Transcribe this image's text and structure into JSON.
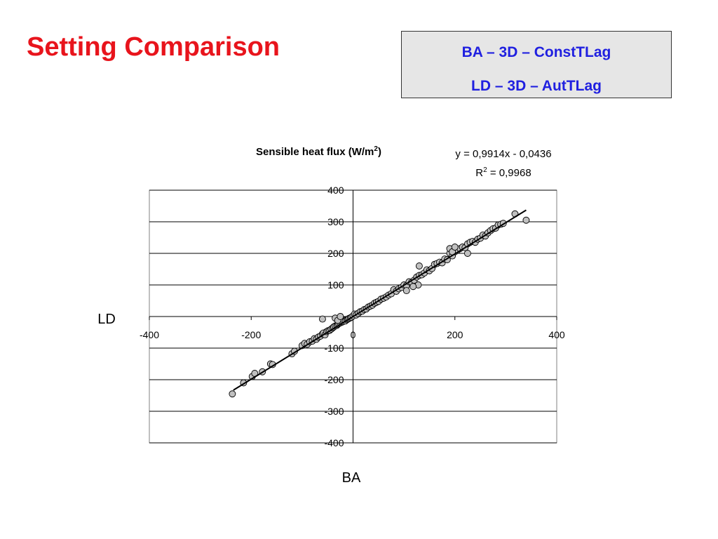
{
  "slide": {
    "title": "Setting Comparison",
    "settings": [
      "BA – 3D – ConstTLag",
      "LD – 3D – AutTLag"
    ],
    "title_color": "#e8141c",
    "settings_color": "#2020e0",
    "settings_bg": "#e6e6e6"
  },
  "chart_data": {
    "type": "scatter",
    "title": "Sensible heat flux (W/m²)",
    "title_parts": {
      "base": "Sensible heat flux (W/m",
      "sup": "2",
      "tail": ")"
    },
    "xlabel": "BA",
    "ylabel": "LD",
    "xlim": [
      -400,
      400
    ],
    "ylim": [
      -400,
      400
    ],
    "x_ticks": [
      -400,
      -200,
      0,
      200,
      400
    ],
    "y_ticks": [
      -400,
      -300,
      -200,
      -100,
      0,
      100,
      200,
      300,
      400
    ],
    "grid": "horizontal",
    "legend": "none",
    "marker_fill": "#c0c0c0",
    "marker_edge": "#000000",
    "trendline": {
      "type": "linear",
      "slope": 0.9914,
      "intercept": -0.0436,
      "x_range": [
        -235,
        340
      ],
      "equation": "y = 0,9914x - 0,0436",
      "r2_base": "R",
      "r2_sup": "2",
      "r2_tail": " = 0,9968"
    },
    "points": [
      [
        -237,
        -245
      ],
      [
        -215,
        -210
      ],
      [
        -198,
        -190
      ],
      [
        -193,
        -180
      ],
      [
        -178,
        -175
      ],
      [
        -162,
        -150
      ],
      [
        -158,
        -152
      ],
      [
        -120,
        -118
      ],
      [
        -115,
        -110
      ],
      [
        -100,
        -92
      ],
      [
        -95,
        -85
      ],
      [
        -90,
        -88
      ],
      [
        -85,
        -80
      ],
      [
        -80,
        -78
      ],
      [
        -76,
        -70
      ],
      [
        -72,
        -72
      ],
      [
        -68,
        -65
      ],
      [
        -64,
        -62
      ],
      [
        -60,
        -55
      ],
      [
        -58,
        -52
      ],
      [
        -55,
        -58
      ],
      [
        -52,
        -48
      ],
      [
        -49,
        -45
      ],
      [
        -46,
        -44
      ],
      [
        -43,
        -40
      ],
      [
        -40,
        -36
      ],
      [
        -38,
        -33
      ],
      [
        -35,
        -30
      ],
      [
        -32,
        -28
      ],
      [
        -30,
        -25
      ],
      [
        -28,
        -22
      ],
      [
        -25,
        -20
      ],
      [
        -22,
        -18
      ],
      [
        -20,
        -16
      ],
      [
        -18,
        -12
      ],
      [
        -15,
        -14
      ],
      [
        -12,
        -10
      ],
      [
        -10,
        -8
      ],
      [
        -8,
        -6
      ],
      [
        -5,
        -4
      ],
      [
        -3,
        -2
      ],
      [
        -60,
        -8
      ],
      [
        -35,
        -5
      ],
      [
        -30,
        -12
      ],
      [
        -25,
        0
      ],
      [
        0,
        2
      ],
      [
        3,
        8
      ],
      [
        6,
        5
      ],
      [
        10,
        10
      ],
      [
        14,
        15
      ],
      [
        18,
        17
      ],
      [
        22,
        22
      ],
      [
        26,
        24
      ],
      [
        30,
        30
      ],
      [
        34,
        33
      ],
      [
        38,
        36
      ],
      [
        42,
        42
      ],
      [
        46,
        45
      ],
      [
        50,
        48
      ],
      [
        55,
        55
      ],
      [
        60,
        58
      ],
      [
        65,
        62
      ],
      [
        70,
        68
      ],
      [
        75,
        72
      ],
      [
        80,
        85
      ],
      [
        85,
        80
      ],
      [
        90,
        88
      ],
      [
        95,
        92
      ],
      [
        100,
        100
      ],
      [
        105,
        98
      ],
      [
        110,
        110
      ],
      [
        115,
        108
      ],
      [
        120,
        115
      ],
      [
        125,
        125
      ],
      [
        130,
        130
      ],
      [
        135,
        132
      ],
      [
        140,
        138
      ],
      [
        145,
        148
      ],
      [
        150,
        145
      ],
      [
        155,
        152
      ],
      [
        160,
        165
      ],
      [
        165,
        168
      ],
      [
        170,
        172
      ],
      [
        175,
        170
      ],
      [
        180,
        182
      ],
      [
        185,
        180
      ],
      [
        190,
        200
      ],
      [
        195,
        192
      ],
      [
        200,
        205
      ],
      [
        205,
        210
      ],
      [
        210,
        215
      ],
      [
        215,
        220
      ],
      [
        220,
        218
      ],
      [
        225,
        230
      ],
      [
        230,
        235
      ],
      [
        235,
        238
      ],
      [
        240,
        235
      ],
      [
        245,
        245
      ],
      [
        250,
        248
      ],
      [
        255,
        258
      ],
      [
        260,
        255
      ],
      [
        265,
        265
      ],
      [
        270,
        272
      ],
      [
        275,
        278
      ],
      [
        280,
        280
      ],
      [
        285,
        290
      ],
      [
        290,
        292
      ],
      [
        295,
        295
      ],
      [
        318,
        325
      ],
      [
        340,
        305
      ],
      [
        130,
        160
      ],
      [
        128,
        100
      ],
      [
        118,
        95
      ],
      [
        105,
        82
      ],
      [
        225,
        200
      ],
      [
        190,
        215
      ],
      [
        195,
        205
      ],
      [
        200,
        220
      ]
    ]
  }
}
